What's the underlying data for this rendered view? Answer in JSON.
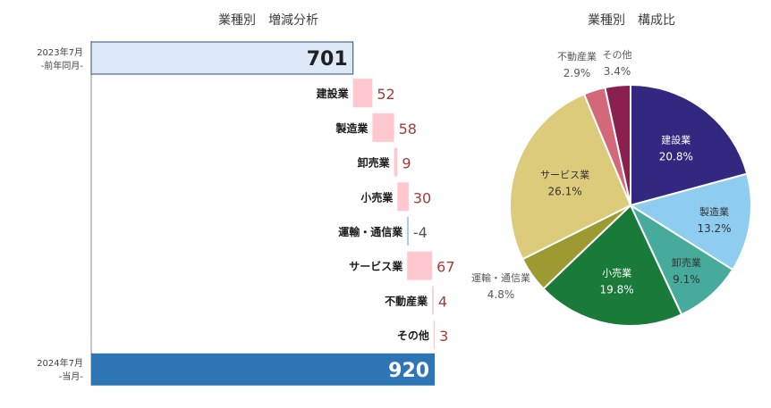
{
  "chart_data": [
    {
      "type": "bar",
      "subtype": "waterfall",
      "orientation": "horizontal",
      "title": "業種別　増減分析",
      "start": {
        "label": "2023年7月",
        "sublabel": "-前年同月-",
        "value": 701
      },
      "end": {
        "label": "2024年7月",
        "sublabel": "-当月-",
        "value": 920
      },
      "categories": [
        "建設業",
        "製造業",
        "卸売業",
        "小売業",
        "運輸・通信業",
        "サービス業",
        "不動産業",
        "その他"
      ],
      "values": [
        52,
        58,
        9,
        30,
        -4,
        67,
        4,
        3
      ],
      "colors": {
        "start_fill": "#dde9f6",
        "start_stroke": "#2f4b6e",
        "end_fill": "#2e75b6",
        "increase": "#ffc7ce",
        "decrease": "#9dc3e6",
        "increase_text": "#a33b3b",
        "decrease_text": "#555555"
      }
    },
    {
      "type": "pie",
      "title": "業種別　構成比",
      "categories": [
        "建設業",
        "製造業",
        "卸売業",
        "小売業",
        "運輸・通信業",
        "サービス業",
        "不動産業",
        "その他"
      ],
      "values": [
        20.8,
        13.2,
        9.1,
        19.8,
        4.8,
        26.1,
        2.9,
        3.4
      ],
      "value_labels": [
        "20.8%",
        "13.2%",
        "9.1%",
        "19.8%",
        "4.8%",
        "26.1%",
        "2.9%",
        "3.4%"
      ],
      "colors": [
        "#33287f",
        "#8ecdf0",
        "#46ab9b",
        "#1a7a3a",
        "#9e9a32",
        "#dccb7a",
        "#d3687a",
        "#8b1f4d"
      ]
    }
  ]
}
